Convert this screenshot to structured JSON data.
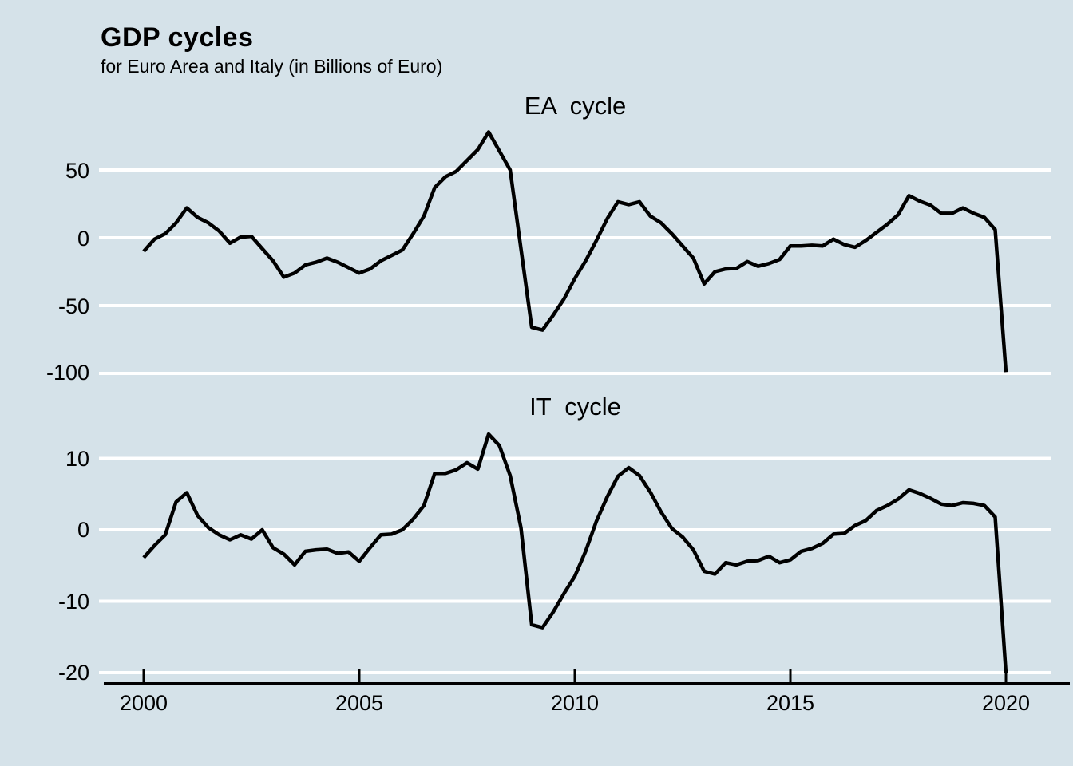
{
  "title": "GDP cycles",
  "subtitle": "for Euro Area and Italy (in Billions of Euro)",
  "colors": {
    "background": "#d5e2e9",
    "gridline": "#ffffff",
    "line": "#000000",
    "text": "#000000"
  },
  "chart_data": [
    {
      "type": "line",
      "title": "EA  cycle",
      "xlabel": "",
      "ylabel": "",
      "frequency": "quarterly",
      "xlim": [
        1999,
        2021
      ],
      "ylim": [
        -104,
        84
      ],
      "yticks": [
        50,
        0,
        -50,
        -100
      ],
      "xticks": [
        2000,
        2005,
        2010,
        2015,
        2020
      ],
      "grid": true,
      "legend": "none",
      "x": [
        2000,
        2000.25,
        2000.5,
        2000.75,
        2001,
        2001.25,
        2001.5,
        2001.75,
        2002,
        2002.25,
        2002.5,
        2002.75,
        2003,
        2003.25,
        2003.5,
        2003.75,
        2004,
        2004.25,
        2004.5,
        2004.75,
        2005,
        2005.25,
        2005.5,
        2005.75,
        2006,
        2006.25,
        2006.5,
        2006.75,
        2007,
        2007.25,
        2007.5,
        2007.75,
        2008,
        2008.25,
        2008.5,
        2008.75,
        2009,
        2009.25,
        2009.5,
        2009.75,
        2010,
        2010.25,
        2010.5,
        2010.75,
        2011,
        2011.25,
        2011.5,
        2011.75,
        2012,
        2012.25,
        2012.5,
        2012.75,
        2013,
        2013.25,
        2013.5,
        2013.75,
        2014,
        2014.25,
        2014.5,
        2014.75,
        2015,
        2015.25,
        2015.5,
        2015.75,
        2016,
        2016.25,
        2016.5,
        2016.75,
        2017,
        2017.25,
        2017.5,
        2017.75,
        2018,
        2018.25,
        2018.5,
        2018.75,
        2019,
        2019.25,
        2019.5,
        2019.75,
        2020
      ],
      "series": [
        {
          "name": "EA cycle",
          "values": [
            -10,
            -1,
            3,
            11,
            22,
            15,
            11,
            5,
            -4,
            0.5,
            1,
            -8,
            -17,
            -29,
            -26,
            -20,
            -18,
            -15,
            -18,
            -22,
            -26,
            -23,
            -17,
            -13,
            -9,
            3,
            16,
            37,
            45,
            49,
            57,
            65,
            78,
            64,
            50,
            -8,
            -66,
            -68,
            -57,
            -45,
            -30,
            -17,
            -2,
            14,
            26.5,
            24.5,
            26.5,
            16,
            11,
            3,
            -6,
            -15,
            -34,
            -25,
            -23,
            -22.5,
            -17.5,
            -21,
            -19,
            -16,
            -6,
            -6,
            -5.5,
            -6,
            -1,
            -5,
            -7,
            -2,
            4,
            10,
            17,
            31,
            27,
            24,
            18,
            18,
            22,
            18,
            15,
            6,
            -99
          ]
        }
      ]
    },
    {
      "type": "line",
      "title": "IT  cycle",
      "xlabel": "",
      "ylabel": "",
      "frequency": "quarterly",
      "xlim": [
        1999,
        2021
      ],
      "ylim": [
        -21.5,
        15
      ],
      "yticks": [
        10,
        0,
        -10,
        -20
      ],
      "xticks": [
        2000,
        2005,
        2010,
        2015,
        2020
      ],
      "grid": true,
      "legend": "none",
      "x": [
        2000,
        2000.25,
        2000.5,
        2000.75,
        2001,
        2001.25,
        2001.5,
        2001.75,
        2002,
        2002.25,
        2002.5,
        2002.75,
        2003,
        2003.25,
        2003.5,
        2003.75,
        2004,
        2004.25,
        2004.5,
        2004.75,
        2005,
        2005.25,
        2005.5,
        2005.75,
        2006,
        2006.25,
        2006.5,
        2006.75,
        2007,
        2007.25,
        2007.5,
        2007.75,
        2008,
        2008.25,
        2008.5,
        2008.75,
        2009,
        2009.25,
        2009.5,
        2009.75,
        2010,
        2010.25,
        2010.5,
        2010.75,
        2011,
        2011.25,
        2011.5,
        2011.75,
        2012,
        2012.25,
        2012.5,
        2012.75,
        2013,
        2013.25,
        2013.5,
        2013.75,
        2014,
        2014.25,
        2014.5,
        2014.75,
        2015,
        2015.25,
        2015.5,
        2015.75,
        2016,
        2016.25,
        2016.5,
        2016.75,
        2017,
        2017.25,
        2017.5,
        2017.75,
        2018,
        2018.25,
        2018.5,
        2018.75,
        2019,
        2019.25,
        2019.5,
        2019.75,
        2020
      ],
      "series": [
        {
          "name": "IT cycle",
          "values": [
            -3.9,
            -2.2,
            -0.7,
            3.9,
            5.2,
            2,
            0.3,
            -0.7,
            -1.4,
            -0.7,
            -1.3,
            0,
            -2.5,
            -3.4,
            -4.9,
            -3,
            -2.8,
            -2.7,
            -3.3,
            -3.1,
            -4.4,
            -2.5,
            -0.7,
            -0.6,
            0,
            1.5,
            3.4,
            7.9,
            7.9,
            8.4,
            9.4,
            8.5,
            13.4,
            11.8,
            7.6,
            0.3,
            -13.3,
            -13.7,
            -11.5,
            -8.9,
            -6.5,
            -3,
            1.2,
            4.6,
            7.5,
            8.7,
            7.6,
            5.3,
            2.5,
            0.2,
            -1,
            -2.8,
            -5.8,
            -6.2,
            -4.6,
            -4.9,
            -4.4,
            -4.3,
            -3.7,
            -4.6,
            -4.2,
            -3,
            -2.6,
            -1.9,
            -0.6,
            -0.5,
            0.6,
            1.3,
            2.7,
            3.4,
            4.3,
            5.6,
            5.1,
            4.4,
            3.6,
            3.4,
            3.8,
            3.7,
            3.4,
            1.8,
            -20.1
          ]
        }
      ]
    }
  ]
}
